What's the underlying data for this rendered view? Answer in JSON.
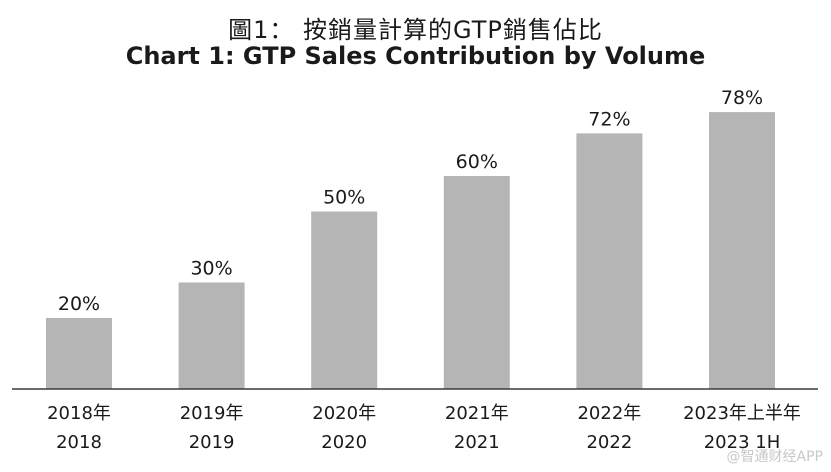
{
  "chart_data": {
    "type": "bar",
    "title_cn": "圖1： 按銷量計算的GTP銷售佔比",
    "title_en": "Chart 1: GTP Sales Contribution by Volume",
    "categories_cn": [
      "2018年",
      "2019年",
      "2020年",
      "2021年",
      "2022年",
      "2023年上半年"
    ],
    "categories_en": [
      "2018",
      "2019",
      "2020",
      "2021",
      "2022",
      "2023 1H"
    ],
    "values": [
      20,
      30,
      50,
      60,
      72,
      78
    ],
    "value_labels": [
      "20%",
      "30%",
      "50%",
      "60%",
      "72%",
      "78%"
    ],
    "unit": "%",
    "ylim": [
      0,
      100
    ],
    "grid": false,
    "bar_color": "#b5b5b5",
    "axis_color": "#3a3a3a"
  },
  "watermark": "@智通财经APP"
}
